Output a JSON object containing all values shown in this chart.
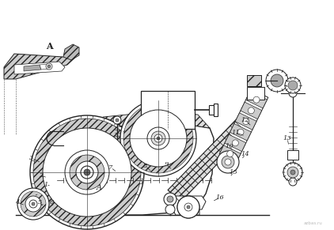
{
  "bg_color": "#ffffff",
  "line_color": "#222222",
  "watermark": "azbas.ru",
  "label_A": "A",
  "figsize": [
    4.22,
    2.91
  ],
  "dpi": 100
}
